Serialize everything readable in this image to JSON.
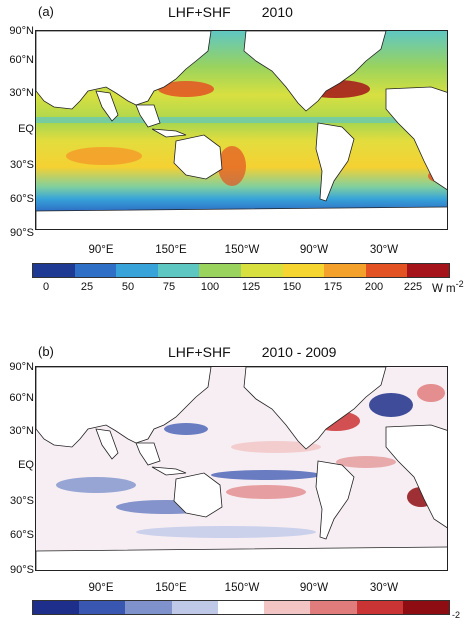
{
  "panel_a": {
    "label": "(a)",
    "title": "LHF+SHF        2010",
    "lat_labels": [
      "90°N",
      "60°N",
      "30°N",
      "EQ",
      "30°S",
      "60°S",
      "90°S"
    ],
    "lon_labels": [
      "90°E",
      "150°E",
      "150°W",
      "90°W",
      "30°W"
    ],
    "colorbar": {
      "ticks": [
        "0",
        "25",
        "50",
        "75",
        "100",
        "125",
        "150",
        "175",
        "200",
        "225"
      ],
      "unit": "W m",
      "unit_sup": "-2",
      "colors": [
        "#1f3a93",
        "#2f6fc5",
        "#37a3d9",
        "#5fc7c2",
        "#9ad35d",
        "#d8e040",
        "#f7d531",
        "#f3a12a",
        "#e35223",
        "#a5141a"
      ]
    }
  },
  "panel_b": {
    "label": "(b)",
    "title": "LHF+SHF        2010 - 2009",
    "lat_labels": [
      "90°N",
      "60°N",
      "30°N",
      "EQ",
      "30°S",
      "60°S",
      "90°S"
    ],
    "lon_labels": [
      "90°E",
      "150°E",
      "150°W",
      "90°W",
      "30°W"
    ],
    "colorbar": {
      "colors": [
        "#1d2f8a",
        "#3956b0",
        "#7f92cc",
        "#c0c8e8",
        "#ffffff",
        "#f3c4c4",
        "#e07c7c",
        "#cb3434",
        "#8e0d12"
      ],
      "unit_sup": "-2"
    }
  },
  "map_colors": {
    "land": "#ffffff",
    "coast": "#222222",
    "ocean_a_base": "#d9df45",
    "ocean_b_base": "#f6eef3"
  }
}
